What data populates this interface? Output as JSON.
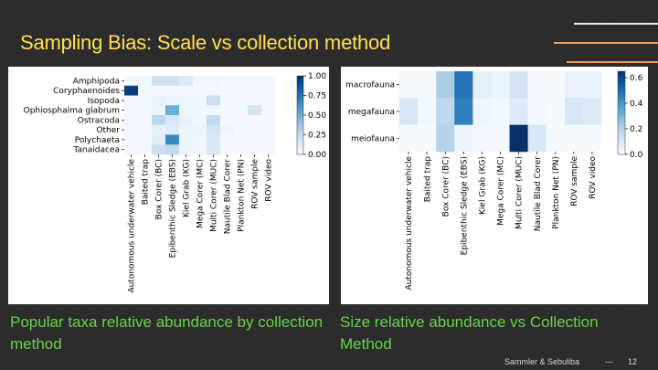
{
  "slide": {
    "title": "Sampling Bias: Scale vs collection method",
    "caption_left": "Popular taxa relative abundance by collection method",
    "caption_right": "Size relative abundance vs Collection Method",
    "footer_authors": "Sammler  & Sebuliba",
    "footer_separator": "---",
    "page_number": "12",
    "colors": {
      "background": "#2b2b2b",
      "title": "#ffe14d",
      "caption": "#66d448",
      "accent_line": "#f2a05a"
    }
  },
  "chart_data": [
    {
      "type": "heatmap",
      "title": "",
      "xlabel": "",
      "ylabel": "",
      "rows": [
        "Amphipoda",
        "Coryphaenoides",
        "Isopoda",
        "Ophiosphalma glabrum",
        "Ostracoda",
        "Other",
        "Polychaeta",
        "Tanaidacea"
      ],
      "columns": [
        "Autonomous underwater vehicle",
        "Baited trap",
        "Box Corer (BC)",
        "Epibenthic Sledge (EBS)",
        "Kiel Grab (KG)",
        "Mega Corer (MC)",
        "Multi Corer (MUC)",
        "Nautile Blad Corer",
        "Plankton Net (PN)",
        "ROV sample",
        "ROV video"
      ],
      "values": [
        [
          0.02,
          0.02,
          0.2,
          0.2,
          0.12,
          0.04,
          0.04,
          0.02,
          0.02,
          0.02,
          0.02
        ],
        [
          0.95,
          0.03,
          0.03,
          0.03,
          0.03,
          0.03,
          0.03,
          0.02,
          0.02,
          0.02,
          0.02
        ],
        [
          0.02,
          0.02,
          0.08,
          0.06,
          0.05,
          0.04,
          0.22,
          0.02,
          0.02,
          0.02,
          0.02
        ],
        [
          0.02,
          0.02,
          0.06,
          0.5,
          0.05,
          0.04,
          0.04,
          0.02,
          0.02,
          0.18,
          0.02
        ],
        [
          0.02,
          0.02,
          0.28,
          0.16,
          0.07,
          0.04,
          0.26,
          0.02,
          0.02,
          0.02,
          0.02
        ],
        [
          0.02,
          0.02,
          0.08,
          0.12,
          0.06,
          0.06,
          0.18,
          0.05,
          0.02,
          0.02,
          0.02
        ],
        [
          0.02,
          0.02,
          0.1,
          0.65,
          0.06,
          0.04,
          0.14,
          0.02,
          0.02,
          0.02,
          0.02
        ],
        [
          0.02,
          0.02,
          0.22,
          0.26,
          0.06,
          0.04,
          0.15,
          0.02,
          0.02,
          0.02,
          0.02
        ]
      ],
      "colorbar": {
        "min": 0.0,
        "max": 1.0,
        "ticks": [
          "0.00",
          "0.25",
          "0.50",
          "0.75",
          "1.00"
        ]
      },
      "colormap": "Blues"
    },
    {
      "type": "heatmap",
      "title": "",
      "xlabel": "",
      "ylabel": "",
      "rows": [
        "macrofauna",
        "megafauna",
        "meiofauna"
      ],
      "columns": [
        "Autonomous underwater vehicle",
        "Baited trap",
        "Box Corer (BC)",
        "Epibenthic Sledge (EBS)",
        "Kiel Grab (KG)",
        "Mega Corer (MC)",
        "Multi Corer (MUC)",
        "Nautile Blad Corer",
        "Plankton Net (PN)",
        "ROV sample",
        "ROV video"
      ],
      "values": [
        [
          0.01,
          0.01,
          0.22,
          0.48,
          0.06,
          0.04,
          0.12,
          0.01,
          0.01,
          0.05,
          0.05
        ],
        [
          0.1,
          0.02,
          0.18,
          0.45,
          0.03,
          0.02,
          0.08,
          0.02,
          0.01,
          0.1,
          0.08
        ],
        [
          0.01,
          0.01,
          0.2,
          0.04,
          0.02,
          0.02,
          0.65,
          0.1,
          0.01,
          0.01,
          0.01
        ]
      ],
      "colorbar": {
        "min": 0.0,
        "max": 0.65,
        "ticks": [
          "0.0",
          "0.2",
          "0.4",
          "0.6"
        ]
      },
      "colormap": "Blues"
    }
  ]
}
